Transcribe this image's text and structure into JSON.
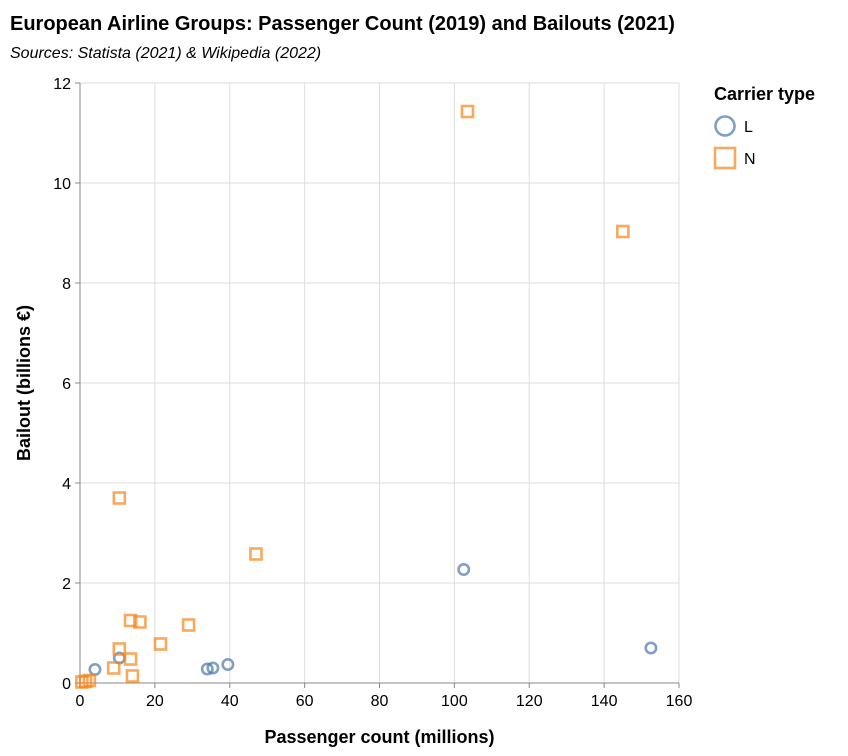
{
  "chart_data": {
    "type": "scatter",
    "title": "European Airline Groups: Passenger Count (2019) and Bailouts (2021)",
    "subtitle": "Sources: Statista (2021) & Wikipedia (2022)",
    "xlabel": "Passenger count (millions)",
    "ylabel": "Bailout (billions €)",
    "xlim": [
      0,
      160
    ],
    "ylim": [
      0,
      12
    ],
    "x_ticks": [
      0,
      20,
      40,
      60,
      80,
      100,
      120,
      140,
      160
    ],
    "y_ticks": [
      0,
      2,
      4,
      6,
      8,
      10,
      12
    ],
    "grid": true,
    "legend": {
      "title": "Carrier type",
      "placement": "right",
      "entries": [
        {
          "label": "L",
          "shape": "circle",
          "color": "#4c78a8"
        },
        {
          "label": "N",
          "shape": "square",
          "color": "#f58518"
        }
      ]
    },
    "series": [
      {
        "name": "L",
        "shape": "circle",
        "color": "#4c78a8",
        "points": [
          {
            "x": 4,
            "y": 0.27
          },
          {
            "x": 10.5,
            "y": 0.5
          },
          {
            "x": 34,
            "y": 0.28
          },
          {
            "x": 35.5,
            "y": 0.3
          },
          {
            "x": 39.5,
            "y": 0.37
          },
          {
            "x": 102.5,
            "y": 2.27
          },
          {
            "x": 152.5,
            "y": 0.7
          }
        ]
      },
      {
        "name": "N",
        "shape": "square",
        "color": "#f58518",
        "points": [
          {
            "x": 0.5,
            "y": 0.02
          },
          {
            "x": 1.5,
            "y": 0.03
          },
          {
            "x": 2.5,
            "y": 0.05
          },
          {
            "x": 9,
            "y": 0.3
          },
          {
            "x": 10.5,
            "y": 0.68
          },
          {
            "x": 10.5,
            "y": 3.7
          },
          {
            "x": 13.5,
            "y": 1.25
          },
          {
            "x": 13.5,
            "y": 0.48
          },
          {
            "x": 14,
            "y": 0.14
          },
          {
            "x": 16,
            "y": 1.22
          },
          {
            "x": 21.5,
            "y": 0.78
          },
          {
            "x": 29,
            "y": 1.16
          },
          {
            "x": 47,
            "y": 2.58
          },
          {
            "x": 103.5,
            "y": 11.43
          },
          {
            "x": 145,
            "y": 9.03
          }
        ]
      }
    ]
  }
}
